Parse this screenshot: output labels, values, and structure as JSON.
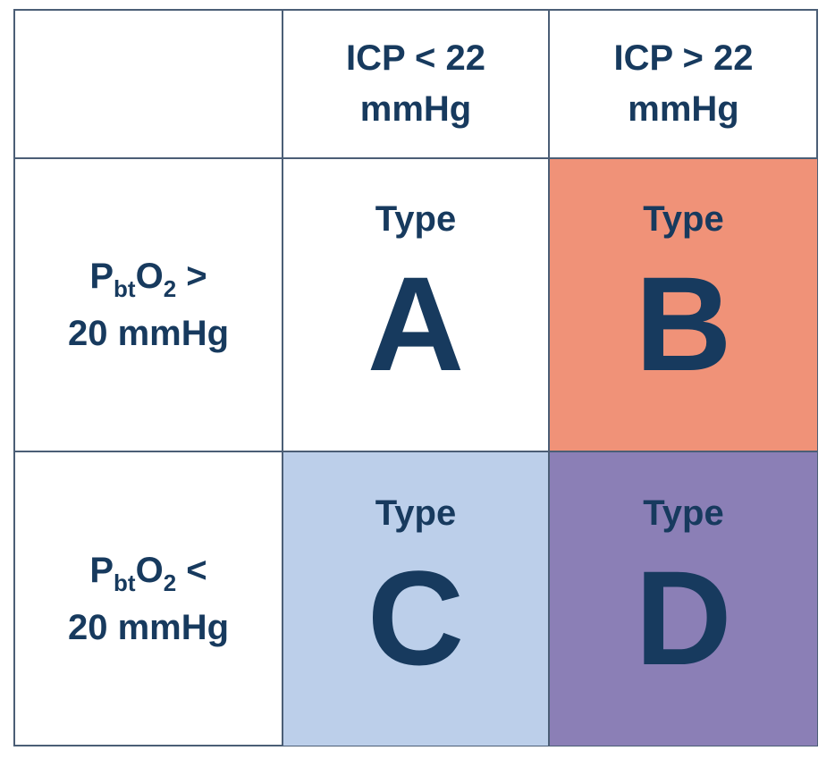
{
  "column_headers": [
    {
      "line1": "ICP < 22",
      "line2": "mmHg"
    },
    {
      "line1": "ICP > 22",
      "line2": "mmHg"
    }
  ],
  "row_headers": [
    {
      "p": "P",
      "sub": "bt",
      "o": "O",
      "sub2": "2",
      "op": " >",
      "line2": "20 mmHg"
    },
    {
      "p": "P",
      "sub": "bt",
      "o": "O",
      "sub2": "2",
      "op": " <",
      "line2": "20 mmHg"
    }
  ],
  "cells": [
    {
      "word": "Type",
      "letter": "A",
      "color": "#ffffff"
    },
    {
      "word": "Type",
      "letter": "B",
      "color": "#f09278"
    },
    {
      "word": "Type",
      "letter": "C",
      "color": "#bccfea"
    },
    {
      "word": "Type",
      "letter": "D",
      "color": "#8b7fb6"
    }
  ],
  "colors": {
    "text": "#173a5e",
    "border": "#4b5e76"
  }
}
